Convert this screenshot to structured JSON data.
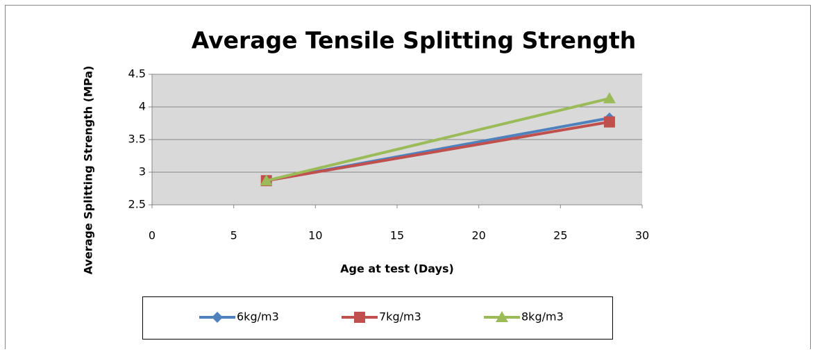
{
  "chart_data": {
    "type": "line",
    "title": "Average Tensile Splitting Strength",
    "x_label": "Age at test (Days)",
    "y_label": "Average Splitting Strength (MPa)",
    "x": [
      7,
      28
    ],
    "series": [
      {
        "name": "6kg/m3",
        "color": "#4f81bd",
        "marker": "diamond",
        "values": [
          2.87,
          3.83
        ]
      },
      {
        "name": "7kg/m3",
        "color": "#c0504d",
        "marker": "square",
        "values": [
          2.87,
          3.77
        ]
      },
      {
        "name": "8kg/m3",
        "color": "#9bbb59",
        "marker": "triangle",
        "values": [
          2.87,
          4.13
        ]
      }
    ],
    "xlim": [
      0,
      30
    ],
    "xticks": [
      0,
      5,
      10,
      15,
      20,
      25,
      30
    ],
    "ylim": [
      2.5,
      4.5
    ],
    "yticks": [
      2.5,
      3,
      3.5,
      4,
      4.5
    ],
    "grid": true,
    "legend": "bottom"
  }
}
